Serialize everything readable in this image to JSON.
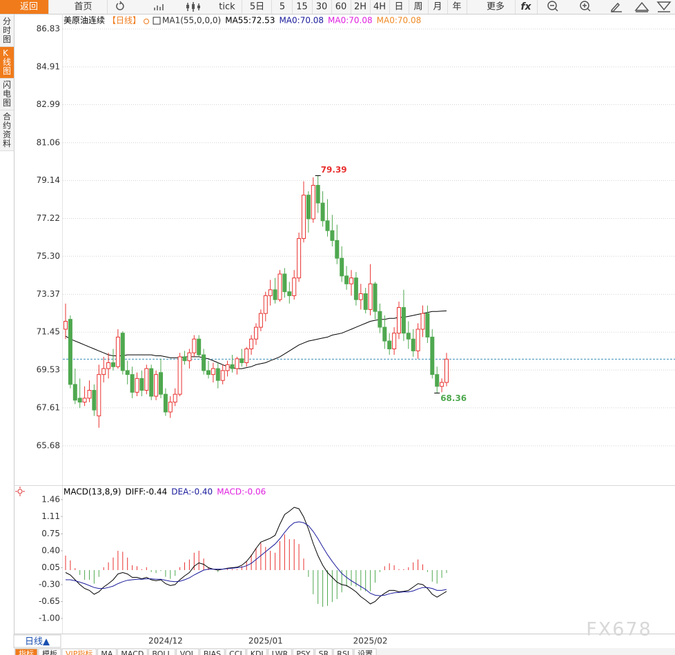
{
  "toolbar": [
    "返回",
    "首页",
    "tick",
    "5日",
    "5",
    "15",
    "30",
    "60",
    "2H",
    "4H",
    "日",
    "周",
    "月",
    "年",
    "更多",
    "fx"
  ],
  "sidebar": [
    "分时图",
    "K线图",
    "闪电图",
    "合约资料"
  ],
  "chart_data": [
    {
      "type": "candlestick",
      "title": "美原油连续",
      "period": "【日线】",
      "indicator": "MA1(55,0,0,0)",
      "legend": [
        {
          "name": "MA55:72.53",
          "color": "#000000"
        },
        {
          "name": "MA0:70.08",
          "color": "#1a1a9c"
        },
        {
          "name": "MA0:70.08",
          "color": "#e020e0"
        },
        {
          "name": "MA0:70.08",
          "color": "#f08a24"
        }
      ],
      "up_color": "#e8312f",
      "down_color": "#4fa84f",
      "categories": [
        null,
        null,
        null,
        null,
        null,
        null,
        null,
        null,
        null,
        null,
        null,
        null,
        null,
        null,
        null,
        null,
        null,
        null,
        null,
        null,
        null,
        "2024/12",
        null,
        null,
        null,
        null,
        null,
        null,
        null,
        null,
        null,
        null,
        null,
        null,
        null,
        null,
        null,
        null,
        null,
        null,
        null,
        null,
        "2025/01",
        null,
        null,
        null,
        null,
        null,
        null,
        null,
        null,
        null,
        null,
        null,
        null,
        null,
        null,
        null,
        null,
        null,
        null,
        null,
        null,
        null,
        "2025/02",
        null,
        null,
        null,
        null,
        null,
        null,
        null,
        null,
        null,
        null,
        null,
        null,
        null,
        null,
        null,
        null
      ],
      "candles": [
        [
          71.6,
          72.9,
          71.1,
          72.0
        ],
        [
          72.1,
          72.3,
          68.6,
          68.8
        ],
        [
          68.8,
          69.6,
          67.8,
          68.0
        ],
        [
          68.1,
          69.1,
          67.6,
          67.9
        ],
        [
          67.9,
          68.7,
          67.7,
          68.1
        ],
        [
          68.1,
          69.0,
          67.9,
          68.5
        ],
        [
          68.5,
          68.8,
          67.2,
          67.5
        ],
        [
          67.2,
          69.8,
          66.6,
          69.3
        ],
        [
          69.3,
          70.2,
          68.9,
          69.6
        ],
        [
          69.6,
          70.4,
          69.1,
          69.9
        ],
        [
          69.9,
          70.6,
          69.5,
          69.7
        ],
        [
          69.7,
          71.6,
          69.6,
          71.2
        ],
        [
          71.4,
          71.5,
          69.3,
          69.5
        ],
        [
          69.5,
          70.0,
          68.8,
          69.3
        ],
        [
          69.3,
          69.7,
          68.1,
          68.4
        ],
        [
          68.4,
          69.4,
          68.2,
          69.1
        ],
        [
          69.1,
          69.5,
          68.2,
          68.5
        ],
        [
          68.5,
          69.8,
          68.3,
          69.6
        ],
        [
          69.6,
          69.8,
          68.0,
          68.2
        ],
        [
          68.2,
          69.5,
          68.0,
          69.3
        ],
        [
          69.4,
          70.1,
          68.1,
          68.3
        ],
        [
          68.3,
          68.6,
          67.2,
          67.4
        ],
        [
          67.4,
          68.2,
          67.1,
          67.9
        ],
        [
          67.9,
          68.6,
          67.7,
          68.3
        ],
        [
          68.3,
          70.4,
          68.2,
          70.2
        ],
        [
          70.2,
          70.5,
          69.8,
          70.0
        ],
        [
          70.0,
          70.6,
          69.6,
          70.4
        ],
        [
          70.4,
          71.3,
          70.2,
          71.1
        ],
        [
          71.1,
          71.3,
          70.2,
          70.3
        ],
        [
          70.3,
          70.6,
          69.3,
          69.5
        ],
        [
          69.5,
          70.0,
          69.1,
          69.3
        ],
        [
          69.3,
          69.9,
          68.9,
          69.6
        ],
        [
          69.6,
          69.9,
          68.6,
          69.0
        ],
        [
          69.0,
          69.8,
          68.8,
          69.5
        ],
        [
          69.5,
          70.0,
          69.2,
          69.8
        ],
        [
          69.8,
          70.3,
          69.4,
          69.6
        ],
        [
          69.6,
          70.2,
          69.3,
          70.1
        ],
        [
          70.1,
          70.6,
          69.7,
          69.9
        ],
        [
          69.9,
          70.7,
          69.7,
          70.6
        ],
        [
          70.6,
          71.3,
          70.3,
          71.1
        ],
        [
          71.1,
          71.9,
          70.8,
          71.7
        ],
        [
          71.7,
          72.6,
          71.5,
          72.4
        ],
        [
          72.4,
          73.5,
          72.0,
          73.3
        ],
        [
          73.3,
          74.1,
          72.8,
          73.6
        ],
        [
          73.6,
          74.2,
          72.9,
          73.1
        ],
        [
          73.1,
          74.6,
          73.0,
          74.4
        ],
        [
          74.4,
          74.7,
          73.2,
          73.5
        ],
        [
          73.5,
          74.0,
          72.9,
          73.3
        ],
        [
          73.3,
          74.6,
          73.1,
          74.2
        ],
        [
          74.2,
          76.5,
          74.0,
          76.2
        ],
        [
          76.2,
          79.1,
          76.0,
          78.4
        ],
        [
          78.4,
          78.6,
          76.5,
          77.2
        ],
        [
          77.2,
          79.3,
          77.0,
          78.9
        ],
        [
          78.9,
          79.39,
          77.5,
          78.0
        ],
        [
          78.0,
          78.6,
          76.8,
          77.1
        ],
        [
          77.1,
          78.2,
          76.3,
          76.6
        ],
        [
          76.6,
          77.4,
          75.8,
          76.1
        ],
        [
          76.1,
          76.9,
          74.9,
          75.2
        ],
        [
          75.2,
          75.8,
          74.0,
          74.3
        ],
        [
          74.3,
          74.8,
          73.6,
          73.9
        ],
        [
          73.9,
          74.6,
          73.3,
          74.2
        ],
        [
          74.2,
          74.5,
          72.8,
          73.1
        ],
        [
          73.1,
          73.9,
          72.6,
          73.4
        ],
        [
          73.4,
          73.7,
          72.4,
          72.6
        ],
        [
          72.6,
          74.9,
          72.3,
          73.9
        ],
        [
          73.9,
          74.0,
          72.1,
          72.5
        ],
        [
          72.5,
          72.9,
          71.4,
          71.7
        ],
        [
          71.7,
          72.3,
          70.6,
          71.0
        ],
        [
          71.0,
          71.4,
          70.3,
          70.6
        ],
        [
          70.6,
          71.7,
          70.3,
          71.4
        ],
        [
          71.4,
          73.0,
          71.1,
          72.7
        ],
        [
          72.7,
          73.6,
          71.0,
          71.4
        ],
        [
          71.4,
          72.0,
          70.6,
          71.1
        ],
        [
          71.1,
          71.6,
          70.2,
          70.5
        ],
        [
          70.5,
          71.9,
          70.1,
          71.6
        ],
        [
          71.6,
          72.8,
          71.2,
          72.4
        ],
        [
          72.4,
          72.8,
          70.9,
          71.2
        ],
        [
          71.2,
          71.6,
          69.1,
          69.3
        ],
        [
          69.3,
          69.7,
          68.36,
          68.7
        ],
        [
          68.7,
          69.1,
          68.4,
          68.9
        ],
        [
          68.9,
          70.4,
          68.7,
          70.08
        ]
      ],
      "ma": [
        71.25,
        71.1,
        71.0,
        70.9,
        70.8,
        70.7,
        70.6,
        70.5,
        70.4,
        70.3,
        70.25,
        70.25,
        70.25,
        70.3,
        70.3,
        70.3,
        70.3,
        70.3,
        70.3,
        70.25,
        70.25,
        70.2,
        70.15,
        70.15,
        70.15,
        70.2,
        70.2,
        70.2,
        70.2,
        70.15,
        70.1,
        70.0,
        69.9,
        69.8,
        69.7,
        69.65,
        69.6,
        69.6,
        69.65,
        69.7,
        69.8,
        69.85,
        69.9,
        70.0,
        70.1,
        70.2,
        70.35,
        70.5,
        70.65,
        70.8,
        70.9,
        71.0,
        71.05,
        71.1,
        71.15,
        71.2,
        71.3,
        71.35,
        71.4,
        71.5,
        71.6,
        71.7,
        71.8,
        71.9,
        72.0,
        72.05,
        72.1,
        72.1,
        72.15,
        72.15,
        72.2,
        72.2,
        72.25,
        72.3,
        72.35,
        72.4,
        72.45,
        72.5,
        72.5,
        72.52,
        72.53
      ],
      "last_price": 70.08,
      "ylim": [
        63.79,
        87.53
      ],
      "yticks": [
        86.83,
        84.91,
        82.99,
        81.06,
        79.14,
        77.22,
        {
          "value": 75.3,
          "label": "75.30"
        },
        73.37,
        71.45,
        69.53,
        67.61,
        65.68
      ],
      "grid": true
    },
    {
      "type": "macd",
      "title": "MACD(13,8,9)",
      "series": [
        {
          "name": "DIFF:-0.44",
          "color": "#000000",
          "values": [
            -0.05,
            -0.1,
            -0.2,
            -0.3,
            -0.38,
            -0.42,
            -0.5,
            -0.45,
            -0.35,
            -0.28,
            -0.2,
            -0.08,
            -0.05,
            -0.08,
            -0.15,
            -0.15,
            -0.18,
            -0.15,
            -0.2,
            -0.22,
            -0.2,
            -0.28,
            -0.32,
            -0.3,
            -0.2,
            -0.12,
            -0.05,
            0.08,
            0.15,
            0.12,
            0.05,
            0.02,
            0.0,
            0.02,
            0.04,
            0.05,
            0.06,
            0.1,
            0.18,
            0.3,
            0.45,
            0.58,
            0.62,
            0.66,
            0.72,
            0.95,
            1.15,
            1.22,
            1.3,
            1.27,
            1.1,
            0.85,
            0.55,
            0.3,
            0.1,
            -0.05,
            -0.15,
            -0.25,
            -0.3,
            -0.32,
            -0.38,
            -0.45,
            -0.55,
            -0.62,
            -0.7,
            -0.65,
            -0.55,
            -0.48,
            -0.42,
            -0.42,
            -0.45,
            -0.44,
            -0.42,
            -0.35,
            -0.28,
            -0.3,
            -0.38,
            -0.5,
            -0.56,
            -0.5,
            -0.44
          ]
        },
        {
          "name": "DEA:-0.40",
          "color": "#1a1a9c",
          "values": [
            -0.2,
            -0.2,
            -0.22,
            -0.25,
            -0.28,
            -0.32,
            -0.36,
            -0.38,
            -0.38,
            -0.36,
            -0.33,
            -0.28,
            -0.24,
            -0.21,
            -0.2,
            -0.19,
            -0.19,
            -0.18,
            -0.18,
            -0.19,
            -0.19,
            -0.21,
            -0.23,
            -0.24,
            -0.23,
            -0.2,
            -0.16,
            -0.1,
            -0.05,
            0.0,
            0.02,
            0.02,
            0.02,
            0.02,
            0.03,
            0.04,
            0.05,
            0.06,
            0.09,
            0.14,
            0.22,
            0.3,
            0.38,
            0.46,
            0.54,
            0.65,
            0.78,
            0.9,
            0.98,
            1.0,
            0.98,
            0.92,
            0.8,
            0.65,
            0.48,
            0.32,
            0.18,
            0.05,
            -0.07,
            -0.15,
            -0.22,
            -0.28,
            -0.34,
            -0.4,
            -0.48,
            -0.52,
            -0.53,
            -0.52,
            -0.49,
            -0.47,
            -0.46,
            -0.45,
            -0.45,
            -0.43,
            -0.39,
            -0.36,
            -0.36,
            -0.38,
            -0.42,
            -0.42,
            -0.4
          ]
        },
        {
          "name": "MACD:-0.06",
          "color": "#e020e0",
          "values": [
            0.3,
            0.2,
            0.04,
            -0.1,
            -0.2,
            -0.2,
            -0.28,
            -0.14,
            0.06,
            0.16,
            0.26,
            0.4,
            0.38,
            0.26,
            0.1,
            0.08,
            0.02,
            0.06,
            -0.04,
            -0.06,
            -0.02,
            -0.14,
            -0.18,
            -0.12,
            0.06,
            0.16,
            0.22,
            0.36,
            0.4,
            0.24,
            0.06,
            0.0,
            -0.04,
            0.0,
            0.02,
            0.02,
            0.02,
            0.08,
            0.18,
            0.32,
            0.46,
            0.56,
            0.48,
            0.4,
            0.36,
            0.6,
            0.74,
            0.64,
            0.64,
            0.54,
            0.24,
            -0.14,
            -0.5,
            -0.7,
            -0.76,
            -0.74,
            -0.66,
            -0.6,
            -0.46,
            -0.34,
            -0.32,
            -0.34,
            -0.42,
            -0.44,
            -0.44,
            -0.26,
            -0.04,
            0.08,
            0.14,
            0.1,
            0.02,
            0.02,
            0.06,
            0.16,
            0.22,
            0.12,
            -0.04,
            -0.24,
            -0.28,
            -0.16,
            -0.06
          ]
        }
      ],
      "ylim": [
        -1.2,
        1.8
      ],
      "yticks": [
        1.46,
        1.11,
        0.75,
        {
          "value": 0.4,
          "label": "0.40"
        },
        0.05,
        {
          "value": -0.3,
          "label": "-0.30"
        },
        -0.65,
        {
          "value": -1.0,
          "label": "-1.00"
        }
      ]
    }
  ],
  "footer": {
    "period_button": "日线▲",
    "tabs": [
      "指标",
      "模板",
      "VIP指标",
      "MA",
      "MACD",
      "BOLL",
      "VOL",
      "BIAS",
      "CCI",
      "KDJ",
      "LWR",
      "PSY",
      "SR",
      "RSI",
      "设置"
    ],
    "watermark": "FX678"
  }
}
